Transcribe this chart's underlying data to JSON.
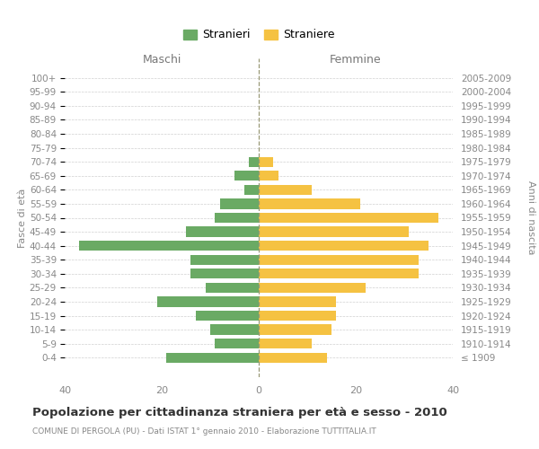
{
  "age_groups": [
    "100+",
    "95-99",
    "90-94",
    "85-89",
    "80-84",
    "75-79",
    "70-74",
    "65-69",
    "60-64",
    "55-59",
    "50-54",
    "45-49",
    "40-44",
    "35-39",
    "30-34",
    "25-29",
    "20-24",
    "15-19",
    "10-14",
    "5-9",
    "0-4"
  ],
  "birth_years": [
    "≤ 1909",
    "1910-1914",
    "1915-1919",
    "1920-1924",
    "1925-1929",
    "1930-1934",
    "1935-1939",
    "1940-1944",
    "1945-1949",
    "1950-1954",
    "1955-1959",
    "1960-1964",
    "1965-1969",
    "1970-1974",
    "1975-1979",
    "1980-1984",
    "1985-1989",
    "1990-1994",
    "1995-1999",
    "2000-2004",
    "2005-2009"
  ],
  "males": [
    0,
    0,
    0,
    0,
    0,
    0,
    2,
    5,
    3,
    8,
    9,
    15,
    37,
    14,
    14,
    11,
    21,
    13,
    10,
    9,
    19
  ],
  "females": [
    0,
    0,
    0,
    0,
    0,
    0,
    3,
    4,
    11,
    21,
    37,
    31,
    35,
    33,
    33,
    22,
    16,
    16,
    15,
    11,
    14
  ],
  "male_color": "#6aaa64",
  "female_color": "#f5c242",
  "title_main": "Popolazione per cittadinanza straniera per età e sesso - 2010",
  "title_sub": "COMUNE DI PERGOLA (PU) - Dati ISTAT 1° gennaio 2010 - Elaborazione TUTTITALIA.IT",
  "xlabel_left": "Maschi",
  "xlabel_right": "Femmine",
  "ylabel_left": "Fasce di età",
  "ylabel_right": "Anni di nascita",
  "legend_male": "Stranieri",
  "legend_female": "Straniere",
  "xlim": [
    -40,
    40
  ],
  "xticks": [
    -40,
    -20,
    0,
    20,
    40
  ],
  "xticklabels": [
    "40",
    "20",
    "0",
    "20",
    "40"
  ],
  "background_color": "#ffffff",
  "grid_color": "#d0d0d0"
}
